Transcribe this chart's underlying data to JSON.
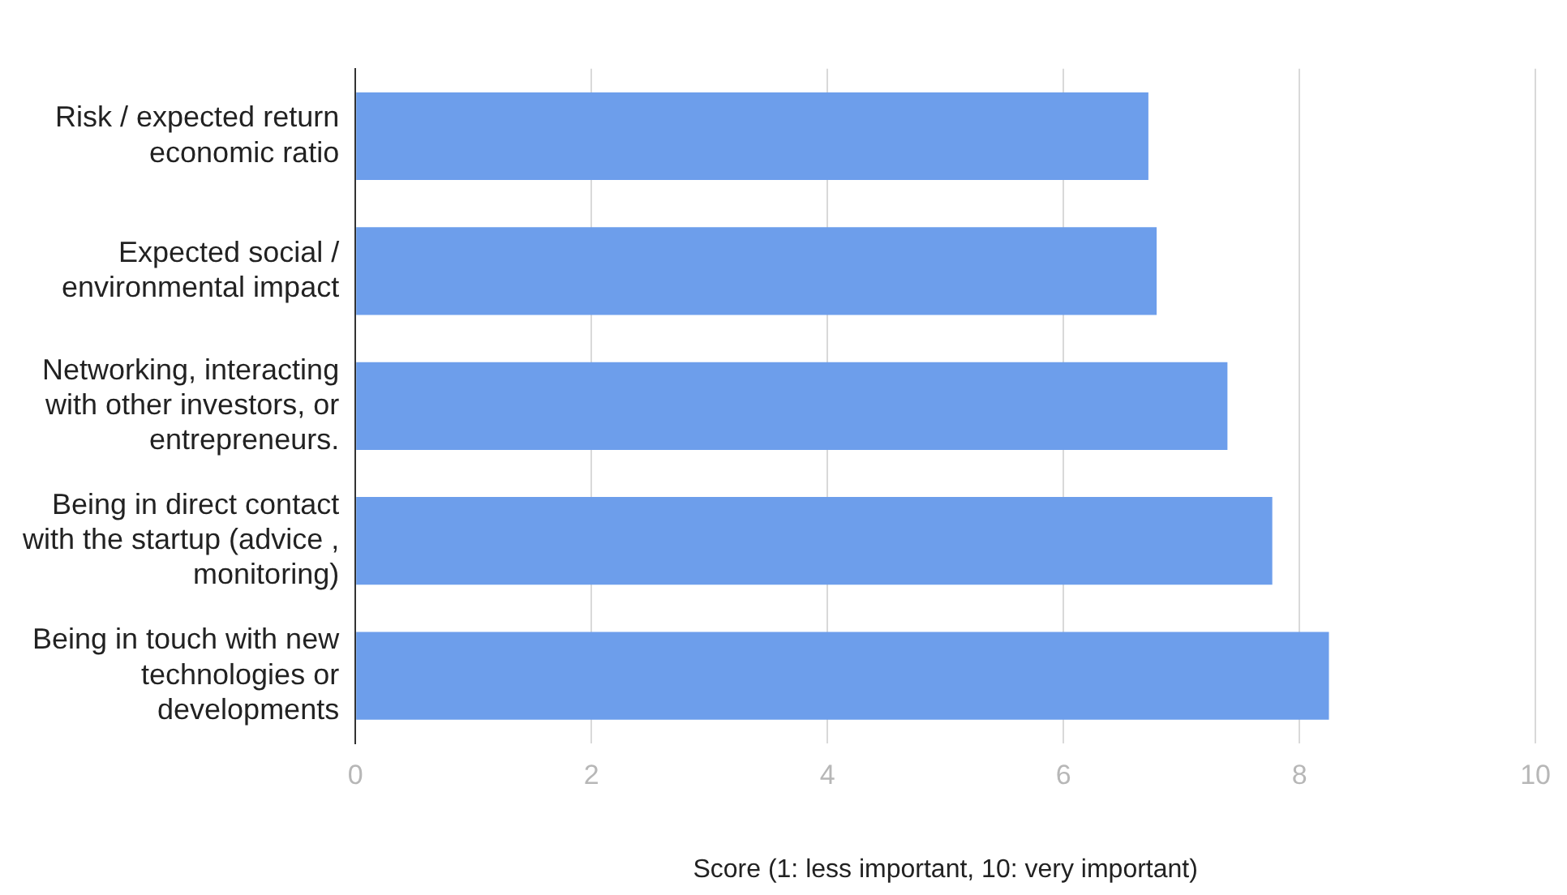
{
  "chart_data": {
    "type": "bar",
    "orientation": "horizontal",
    "xlabel": "Score (1: less important, 10: very important)",
    "categories": [
      "Risk / expected return economic ratio",
      "Expected social / environmental impact",
      "Networking, interacting with other investors, or entrepreneurs.",
      "Being in direct contact with the startup (advice , monitoring)",
      "Being in touch with new technologies or developments"
    ],
    "values": [
      6.72,
      6.79,
      7.39,
      7.77,
      8.25
    ],
    "color": "#6d9eeb",
    "xlim": [
      0,
      10
    ],
    "xticks": [
      0,
      2,
      4,
      6,
      8,
      10
    ],
    "grid": "x",
    "legend": false
  }
}
